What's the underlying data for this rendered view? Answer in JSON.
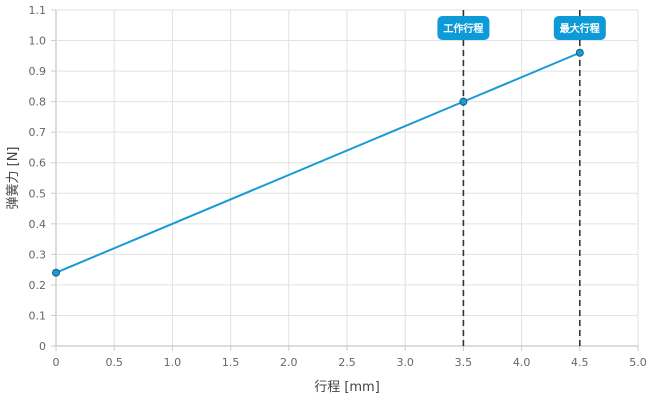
{
  "chart_data": {
    "type": "line",
    "title": "",
    "xlabel": "行程 [mm]",
    "ylabel": "弹簧力 [N]",
    "xlim": [
      0,
      5.0
    ],
    "ylim": [
      0,
      1.1
    ],
    "xticks": [
      "0",
      "0.5",
      "1.0",
      "1.5",
      "2.0",
      "2.5",
      "3.0",
      "3.5",
      "4.0",
      "4.5",
      "5.0"
    ],
    "yticks": [
      "0",
      "0.1",
      "0.2",
      "0.3",
      "0.4",
      "0.5",
      "0.6",
      "0.7",
      "0.8",
      "0.9",
      "1.0",
      "1.1"
    ],
    "grid": true,
    "series": [
      {
        "x": [
          0,
          3.5,
          4.5
        ],
        "y": [
          0.24,
          0.8,
          0.96
        ],
        "color": "#1a9ad6"
      }
    ],
    "annotations": [
      {
        "x": 3.5,
        "label": "工作行程",
        "style": "dashed-vertical"
      },
      {
        "x": 4.5,
        "label": "最大行程",
        "style": "dashed-vertical"
      }
    ],
    "annotation_color": "#0d9bd8"
  }
}
